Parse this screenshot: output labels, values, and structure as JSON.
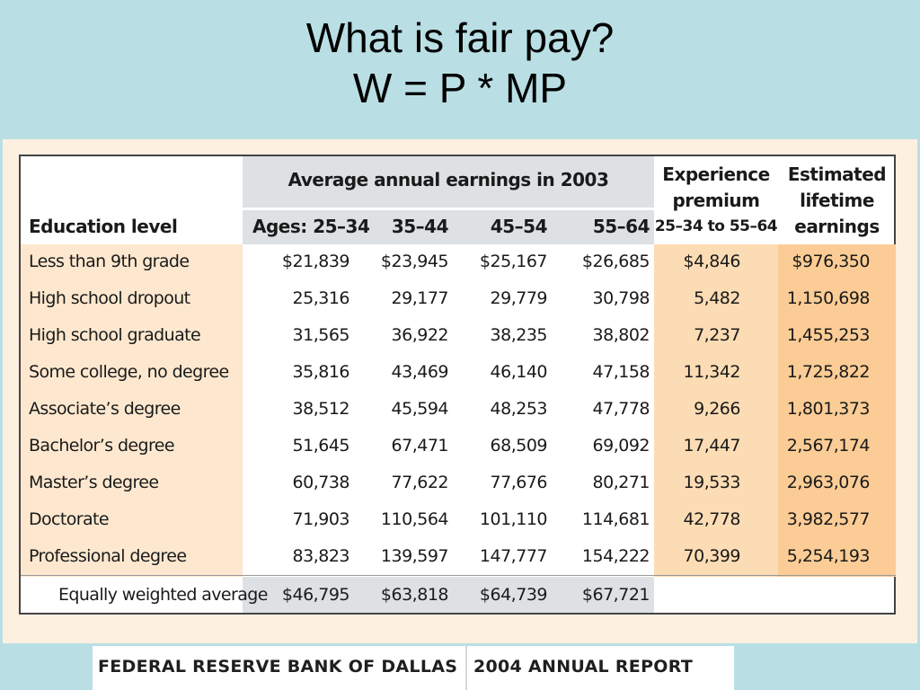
{
  "title": {
    "line1": "What is fair pay?",
    "line2": "W = P * MP"
  },
  "table": {
    "group_header": "Average annual earnings in 2003",
    "col_education": "Education level",
    "cols": [
      "Ages: 25–34",
      "35–44",
      "45–54",
      "55–64"
    ],
    "experience_header": [
      "Experience",
      "premium",
      "25–34 to 55–64"
    ],
    "lifetime_header": [
      "Estimated",
      "lifetime",
      "earnings"
    ],
    "rows": [
      {
        "label": "Less than 9th grade",
        "values": [
          "$21,839",
          "$23,945",
          "$25,167",
          "$26,685"
        ],
        "premium": "$4,846",
        "lifetime": "$976,350"
      },
      {
        "label": "High school dropout",
        "values": [
          "25,316",
          "29,177",
          "29,779",
          "30,798"
        ],
        "premium": "5,482",
        "lifetime": "1,150,698"
      },
      {
        "label": "High school graduate",
        "values": [
          "31,565",
          "36,922",
          "38,235",
          "38,802"
        ],
        "premium": "7,237",
        "lifetime": "1,455,253"
      },
      {
        "label": "Some college, no degree",
        "values": [
          "35,816",
          "43,469",
          "46,140",
          "47,158"
        ],
        "premium": "11,342",
        "lifetime": "1,725,822"
      },
      {
        "label": "Associate’s degree",
        "values": [
          "38,512",
          "45,594",
          "48,253",
          "47,778"
        ],
        "premium": "9,266",
        "lifetime": "1,801,373"
      },
      {
        "label": "Bachelor’s degree",
        "values": [
          "51,645",
          "67,471",
          "68,509",
          "69,092"
        ],
        "premium": "17,447",
        "lifetime": "2,567,174"
      },
      {
        "label": "Master’s degree",
        "values": [
          "60,738",
          "77,622",
          "77,676",
          "80,271"
        ],
        "premium": "19,533",
        "lifetime": "2,963,076"
      },
      {
        "label": "Doctorate",
        "values": [
          "71,903",
          "110,564",
          "101,110",
          "114,681"
        ],
        "premium": "42,778",
        "lifetime": "3,982,577"
      },
      {
        "label": "Professional degree",
        "values": [
          "83,823",
          "139,597",
          "147,777",
          "154,222"
        ],
        "premium": "70,399",
        "lifetime": "5,254,193"
      }
    ],
    "average": {
      "label": "Equally weighted average",
      "values": [
        "$46,795",
        "$63,818",
        "$64,739",
        "$67,721"
      ]
    }
  },
  "footer": {
    "left": "FEDERAL RESERVE BANK OF DALLAS",
    "right": "2004 ANNUAL REPORT"
  },
  "colors": {
    "background": "#b9dfe4",
    "panel": "#fdf0e0",
    "gray": "#dde1e4",
    "peach_light": "#fde8cf",
    "peach": "#fcdcb4",
    "orange": "#fbcc95"
  }
}
